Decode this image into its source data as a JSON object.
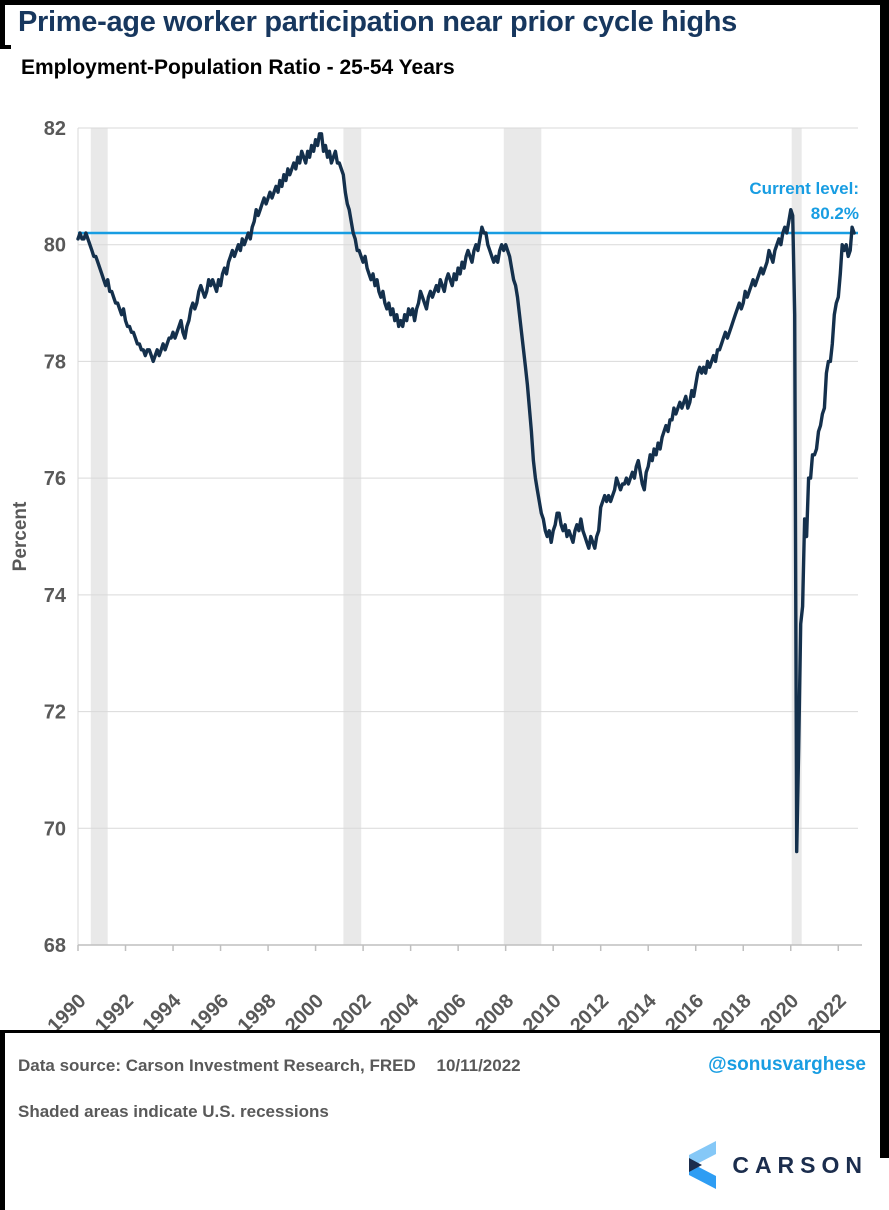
{
  "header": {
    "title": "Prime-age worker participation near prior cycle highs",
    "subtitle": "Employment-Population Ratio - 25-54 Years"
  },
  "annotation": {
    "line1": "Current level:",
    "line2": "80.2%"
  },
  "footer": {
    "data_source": "Data source: Carson Investment Research, FRED",
    "date": "10/11/2022",
    "handle": "@sonusvarghese",
    "note": "Shaded areas indicate U.S. recessions",
    "logo_text": "CARSON"
  },
  "icons": {
    "logo_icon": "carson-chevron-mark"
  },
  "colors": {
    "title_navy": "#17375e",
    "line_navy": "#14304c",
    "accent_blue": "#189de2",
    "axis_text_gray": "#595959",
    "grid_gray": "#d9d9d9",
    "axis_gray": "#bfbfbf",
    "recession_band": "#e9e9e9",
    "logo_navy": "#1b2d4d",
    "logo_light_blue": "#85c8f7",
    "logo_mid_blue": "#2e9df3"
  },
  "chart_data": {
    "type": "line",
    "title": "Prime-age worker participation near prior cycle highs",
    "subtitle": "Employment-Population Ratio - 25-54 Years",
    "xlabel": "",
    "ylabel": "Percent",
    "ylim": [
      68,
      82
    ],
    "yticks": [
      68,
      70,
      72,
      74,
      76,
      78,
      80,
      82
    ],
    "xticks": [
      1990,
      1992,
      1994,
      1996,
      1998,
      2000,
      2002,
      2004,
      2006,
      2008,
      2010,
      2012,
      2014,
      2016,
      2018,
      2020,
      2022
    ],
    "x_start": 1990.0,
    "x_end": 2022.83,
    "frequency": "monthly",
    "grid": "horizontal",
    "legend": "none",
    "ref_line": {
      "value": 80.2,
      "label": "Current level: 80.2%"
    },
    "recessions": [
      [
        1990.54,
        1991.25
      ],
      [
        2001.17,
        2001.92
      ],
      [
        2007.92,
        2009.5
      ],
      [
        2020.04,
        2020.46
      ]
    ],
    "series": [
      {
        "name": "Employment-Population Ratio 25-54 Years",
        "values": [
          80.1,
          80.2,
          80.1,
          80.1,
          80.2,
          80.1,
          80.0,
          79.9,
          79.8,
          79.8,
          79.7,
          79.6,
          79.5,
          79.4,
          79.3,
          79.4,
          79.2,
          79.2,
          79.1,
          79.0,
          79.0,
          78.9,
          78.8,
          78.9,
          78.7,
          78.6,
          78.6,
          78.5,
          78.5,
          78.4,
          78.3,
          78.3,
          78.2,
          78.2,
          78.1,
          78.2,
          78.2,
          78.1,
          78.0,
          78.1,
          78.2,
          78.1,
          78.2,
          78.3,
          78.2,
          78.3,
          78.4,
          78.4,
          78.5,
          78.4,
          78.5,
          78.6,
          78.7,
          78.5,
          78.4,
          78.6,
          78.7,
          78.9,
          79.0,
          78.9,
          79.0,
          79.2,
          79.3,
          79.2,
          79.1,
          79.2,
          79.4,
          79.3,
          79.4,
          79.3,
          79.2,
          79.4,
          79.3,
          79.5,
          79.6,
          79.5,
          79.7,
          79.8,
          79.9,
          79.8,
          79.9,
          80.0,
          79.9,
          80.1,
          80.0,
          80.1,
          80.2,
          80.1,
          80.3,
          80.4,
          80.6,
          80.5,
          80.6,
          80.7,
          80.8,
          80.7,
          80.8,
          80.9,
          80.8,
          80.9,
          81.0,
          80.9,
          81.1,
          81.0,
          81.2,
          81.1,
          81.3,
          81.2,
          81.3,
          81.4,
          81.3,
          81.5,
          81.4,
          81.6,
          81.5,
          81.4,
          81.6,
          81.5,
          81.7,
          81.6,
          81.8,
          81.7,
          81.9,
          81.9,
          81.6,
          81.7,
          81.5,
          81.6,
          81.4,
          81.5,
          81.6,
          81.4,
          81.4,
          81.3,
          81.2,
          80.9,
          80.7,
          80.6,
          80.4,
          80.2,
          80.1,
          79.9,
          79.9,
          79.8,
          79.7,
          79.8,
          79.6,
          79.5,
          79.4,
          79.5,
          79.3,
          79.4,
          79.2,
          79.1,
          79.2,
          79.0,
          78.9,
          79.0,
          78.8,
          78.9,
          78.7,
          78.8,
          78.6,
          78.7,
          78.6,
          78.8,
          78.7,
          78.9,
          78.8,
          78.9,
          78.7,
          78.9,
          79.0,
          79.2,
          79.1,
          79.0,
          78.9,
          79.1,
          79.2,
          79.1,
          79.2,
          79.3,
          79.2,
          79.4,
          79.3,
          79.2,
          79.4,
          79.5,
          79.4,
          79.3,
          79.5,
          79.4,
          79.6,
          79.5,
          79.7,
          79.6,
          79.8,
          79.9,
          79.8,
          79.7,
          79.9,
          80.0,
          79.9,
          80.1,
          80.3,
          80.2,
          80.2,
          80.0,
          79.9,
          79.8,
          79.7,
          79.8,
          79.7,
          79.9,
          80.0,
          79.9,
          80.0,
          79.9,
          79.8,
          79.6,
          79.4,
          79.3,
          79.1,
          78.8,
          78.5,
          78.2,
          77.9,
          77.6,
          77.2,
          76.8,
          76.3,
          76.0,
          75.8,
          75.6,
          75.4,
          75.3,
          75.1,
          75.0,
          75.1,
          74.9,
          75.1,
          75.2,
          75.4,
          75.4,
          75.2,
          75.1,
          75.2,
          75.0,
          75.1,
          75.0,
          74.9,
          75.1,
          75.2,
          75.1,
          75.3,
          75.1,
          75.0,
          74.9,
          74.8,
          75.0,
          74.9,
          74.8,
          75.0,
          75.1,
          75.5,
          75.6,
          75.7,
          75.6,
          75.7,
          75.6,
          75.7,
          75.8,
          76.0,
          75.9,
          75.8,
          75.9,
          75.9,
          76.0,
          75.9,
          76.0,
          76.1,
          76.0,
          76.2,
          76.3,
          76.1,
          75.9,
          75.8,
          76.1,
          76.2,
          76.4,
          76.3,
          76.5,
          76.4,
          76.6,
          76.5,
          76.7,
          76.8,
          76.9,
          76.8,
          77.0,
          77.0,
          77.2,
          77.1,
          77.2,
          77.3,
          77.2,
          77.3,
          77.4,
          77.2,
          77.3,
          77.5,
          77.4,
          77.6,
          77.8,
          77.9,
          77.8,
          77.9,
          77.8,
          78.0,
          77.9,
          78.0,
          78.1,
          78.0,
          78.2,
          78.2,
          78.3,
          78.4,
          78.5,
          78.4,
          78.5,
          78.6,
          78.7,
          78.8,
          78.9,
          79.0,
          78.9,
          79.0,
          79.2,
          79.1,
          79.2,
          79.3,
          79.4,
          79.3,
          79.4,
          79.5,
          79.6,
          79.5,
          79.6,
          79.7,
          79.9,
          79.8,
          79.7,
          79.9,
          80.0,
          80.1,
          80.0,
          80.2,
          80.3,
          80.2,
          80.4,
          80.6,
          80.5,
          78.8,
          69.6,
          71.4,
          73.5,
          73.8,
          75.3,
          75.0,
          76.0,
          76.0,
          76.4,
          76.4,
          76.5,
          76.8,
          76.9,
          77.1,
          77.2,
          77.8,
          78.0,
          78.0,
          78.3,
          78.8,
          79.0,
          79.1,
          79.5,
          80.0,
          79.9,
          80.0,
          79.8,
          79.9,
          80.3,
          80.2
        ]
      }
    ]
  }
}
